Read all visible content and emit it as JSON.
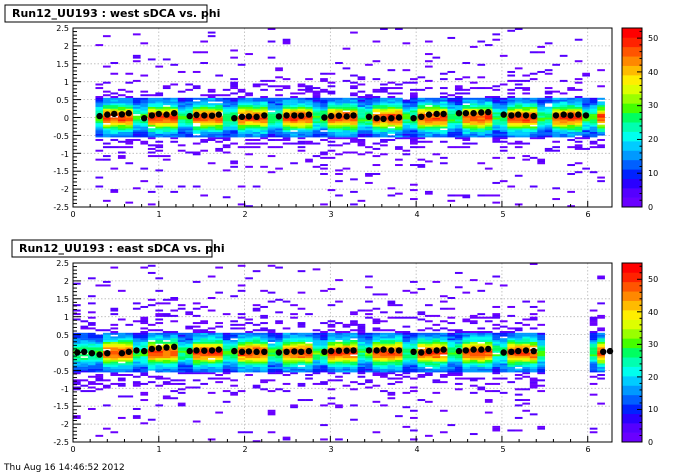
{
  "chart_data": [
    {
      "type": "heatmap",
      "title": "Run12_UU193 : west sDCA vs. phi",
      "xlabel": "",
      "ylabel": "",
      "xlim": [
        0,
        6.283
      ],
      "ylim": [
        -2.5,
        2.5
      ],
      "x_ticks": [
        "0",
        "1",
        "2",
        "3",
        "4",
        "5",
        "6"
      ],
      "y_ticks": [
        "-2.5",
        "-2",
        "-1.5",
        "-1",
        "-0.5",
        "0",
        "0.5",
        "1",
        "1.5",
        "2",
        "2.5"
      ],
      "color_scale": {
        "min": 0,
        "max": 53,
        "ticks": [
          "0",
          "10",
          "20",
          "30",
          "40",
          "50"
        ]
      },
      "grid": true,
      "empty_phi_ranges": [],
      "profile_means": [
        {
          "x": 0.31,
          "y": 0.04
        },
        {
          "x": 0.4,
          "y": 0.08
        },
        {
          "x": 0.48,
          "y": 0.1
        },
        {
          "x": 0.57,
          "y": 0.09
        },
        {
          "x": 0.65,
          "y": 0.12
        },
        {
          "x": 0.83,
          "y": -0.02
        },
        {
          "x": 0.92,
          "y": 0.06
        },
        {
          "x": 1.0,
          "y": 0.1
        },
        {
          "x": 1.09,
          "y": 0.08
        },
        {
          "x": 1.18,
          "y": 0.12
        },
        {
          "x": 1.36,
          "y": 0.04
        },
        {
          "x": 1.44,
          "y": 0.07
        },
        {
          "x": 1.53,
          "y": 0.06
        },
        {
          "x": 1.62,
          "y": 0.05
        },
        {
          "x": 1.7,
          "y": 0.08
        },
        {
          "x": 1.88,
          "y": -0.02
        },
        {
          "x": 1.97,
          "y": 0.02
        },
        {
          "x": 2.05,
          "y": 0.03
        },
        {
          "x": 2.14,
          "y": 0.02
        },
        {
          "x": 2.23,
          "y": 0.06
        },
        {
          "x": 2.4,
          "y": 0.03
        },
        {
          "x": 2.49,
          "y": 0.06
        },
        {
          "x": 2.58,
          "y": 0.06
        },
        {
          "x": 2.66,
          "y": 0.05
        },
        {
          "x": 2.75,
          "y": 0.08
        },
        {
          "x": 2.93,
          "y": 0.0
        },
        {
          "x": 3.01,
          "y": 0.04
        },
        {
          "x": 3.1,
          "y": 0.05
        },
        {
          "x": 3.19,
          "y": 0.03
        },
        {
          "x": 3.27,
          "y": 0.06
        },
        {
          "x": 3.45,
          "y": 0.02
        },
        {
          "x": 3.54,
          "y": -0.02
        },
        {
          "x": 3.62,
          "y": -0.04
        },
        {
          "x": 3.71,
          "y": -0.02
        },
        {
          "x": 3.8,
          "y": 0.0
        },
        {
          "x": 3.97,
          "y": -0.02
        },
        {
          "x": 4.06,
          "y": 0.02
        },
        {
          "x": 4.15,
          "y": 0.08
        },
        {
          "x": 4.24,
          "y": 0.1
        },
        {
          "x": 4.32,
          "y": 0.1
        },
        {
          "x": 4.5,
          "y": 0.12
        },
        {
          "x": 4.58,
          "y": 0.12
        },
        {
          "x": 4.67,
          "y": 0.12
        },
        {
          "x": 4.76,
          "y": 0.14
        },
        {
          "x": 4.84,
          "y": 0.15
        },
        {
          "x": 5.02,
          "y": 0.08
        },
        {
          "x": 5.11,
          "y": 0.06
        },
        {
          "x": 5.19,
          "y": 0.08
        },
        {
          "x": 5.28,
          "y": 0.06
        },
        {
          "x": 5.37,
          "y": 0.04
        },
        {
          "x": 5.63,
          "y": 0.06
        },
        {
          "x": 5.72,
          "y": 0.08
        },
        {
          "x": 5.8,
          "y": 0.06
        },
        {
          "x": 5.89,
          "y": 0.08
        },
        {
          "x": 5.98,
          "y": 0.06
        }
      ]
    },
    {
      "type": "heatmap",
      "title": "Run12_UU193 : east sDCA vs. phi",
      "xlabel": "",
      "ylabel": "",
      "xlim": [
        0,
        6.283
      ],
      "ylim": [
        -2.5,
        2.5
      ],
      "x_ticks": [
        "0",
        "1",
        "2",
        "3",
        "4",
        "5",
        "6"
      ],
      "y_ticks": [
        "-2.5",
        "-2",
        "-1.5",
        "-1",
        "-0.5",
        "0",
        "0.5",
        "1",
        "1.5",
        "2",
        "2.5"
      ],
      "color_scale": {
        "min": 0,
        "max": 55,
        "ticks": [
          "0",
          "10",
          "20",
          "30",
          "40",
          "50"
        ]
      },
      "grid": true,
      "empty_phi_ranges": [
        [
          5.5,
          6.05
        ]
      ],
      "profile_means": [
        {
          "x": 0.05,
          "y": 0.0
        },
        {
          "x": 0.13,
          "y": 0.02
        },
        {
          "x": 0.22,
          "y": -0.02
        },
        {
          "x": 0.31,
          "y": -0.06
        },
        {
          "x": 0.4,
          "y": -0.02
        },
        {
          "x": 0.57,
          "y": -0.02
        },
        {
          "x": 0.65,
          "y": 0.02
        },
        {
          "x": 0.74,
          "y": 0.06
        },
        {
          "x": 0.83,
          "y": 0.04
        },
        {
          "x": 0.92,
          "y": 0.1
        },
        {
          "x": 1.0,
          "y": 0.12
        },
        {
          "x": 1.09,
          "y": 0.14
        },
        {
          "x": 1.18,
          "y": 0.16
        },
        {
          "x": 1.36,
          "y": 0.04
        },
        {
          "x": 1.44,
          "y": 0.06
        },
        {
          "x": 1.53,
          "y": 0.05
        },
        {
          "x": 1.62,
          "y": 0.06
        },
        {
          "x": 1.7,
          "y": 0.08
        },
        {
          "x": 1.88,
          "y": 0.04
        },
        {
          "x": 1.97,
          "y": 0.02
        },
        {
          "x": 2.05,
          "y": 0.03
        },
        {
          "x": 2.14,
          "y": 0.02
        },
        {
          "x": 2.23,
          "y": 0.02
        },
        {
          "x": 2.4,
          "y": 0.0
        },
        {
          "x": 2.49,
          "y": 0.02
        },
        {
          "x": 2.58,
          "y": 0.03
        },
        {
          "x": 2.66,
          "y": 0.02
        },
        {
          "x": 2.75,
          "y": 0.04
        },
        {
          "x": 2.93,
          "y": 0.02
        },
        {
          "x": 3.01,
          "y": 0.04
        },
        {
          "x": 3.1,
          "y": 0.05
        },
        {
          "x": 3.19,
          "y": 0.05
        },
        {
          "x": 3.27,
          "y": 0.06
        },
        {
          "x": 3.45,
          "y": 0.06
        },
        {
          "x": 3.54,
          "y": 0.06
        },
        {
          "x": 3.62,
          "y": 0.08
        },
        {
          "x": 3.71,
          "y": 0.06
        },
        {
          "x": 3.8,
          "y": 0.06
        },
        {
          "x": 3.97,
          "y": 0.02
        },
        {
          "x": 4.06,
          "y": 0.0
        },
        {
          "x": 4.15,
          "y": 0.04
        },
        {
          "x": 4.24,
          "y": 0.06
        },
        {
          "x": 4.32,
          "y": 0.08
        },
        {
          "x": 4.5,
          "y": 0.04
        },
        {
          "x": 4.58,
          "y": 0.06
        },
        {
          "x": 4.67,
          "y": 0.08
        },
        {
          "x": 4.76,
          "y": 0.08
        },
        {
          "x": 4.84,
          "y": 0.1
        },
        {
          "x": 5.02,
          "y": 0.0
        },
        {
          "x": 5.11,
          "y": 0.02
        },
        {
          "x": 5.19,
          "y": 0.04
        },
        {
          "x": 5.28,
          "y": 0.06
        },
        {
          "x": 5.37,
          "y": 0.04
        },
        {
          "x": 6.18,
          "y": 0.02
        },
        {
          "x": 6.26,
          "y": 0.04
        }
      ]
    }
  ],
  "colors": {
    "palette": [
      "#6a00ff",
      "#5500ff",
      "#2a00ff",
      "#0022ff",
      "#0060ff",
      "#0099ff",
      "#00ccff",
      "#00ffee",
      "#00ffb0",
      "#00ff60",
      "#44ff00",
      "#99ff00",
      "#ddff00",
      "#ffee00",
      "#ffbb00",
      "#ff8800",
      "#ff5500",
      "#ff2200",
      "#ff0000"
    ],
    "marker": "#000000",
    "grid": "#b8b8b8"
  },
  "footer": {
    "text": "Thu Aug 16 14:46:52 2012"
  }
}
